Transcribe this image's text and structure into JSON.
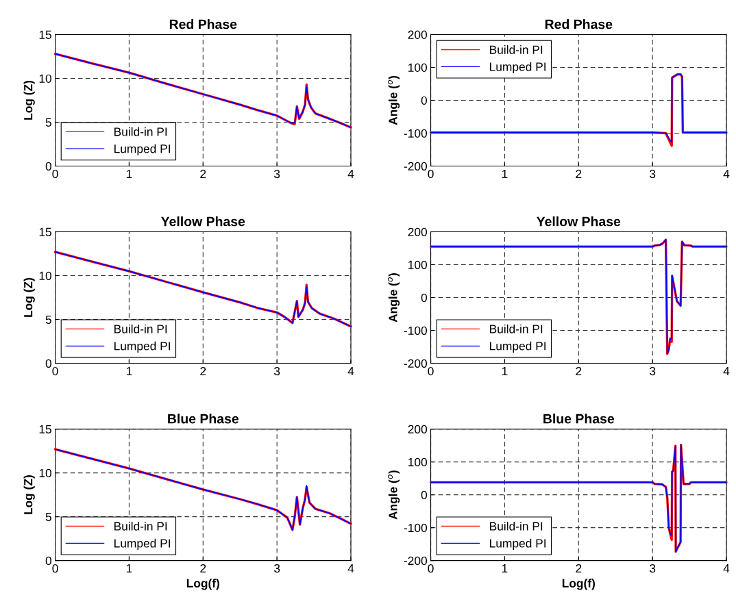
{
  "chart_data": [
    {
      "type": "line",
      "title": "Red Phase",
      "ylabel": "Log (Z)",
      "xlim": [
        0,
        4
      ],
      "xticks": [
        0,
        1,
        2,
        3,
        4
      ],
      "ylim": [
        0,
        15
      ],
      "yticks": [
        0,
        5,
        10,
        15
      ],
      "grid": true,
      "legend": "bottom left",
      "x": [
        0,
        0.5,
        1,
        1.5,
        2,
        2.5,
        2.73,
        3,
        3.1,
        3.19,
        3.24,
        3.27,
        3.3,
        3.35,
        3.38,
        3.4,
        3.42,
        3.46,
        3.52,
        3.71,
        3.86,
        4
      ],
      "series": [
        {
          "name": "Build-in PI",
          "color": "#ff0000",
          "values": [
            12.8,
            11.7,
            10.65,
            9.4,
            8.2,
            7.0,
            6.4,
            5.75,
            5.3,
            4.9,
            4.8,
            6.8,
            5.4,
            6.2,
            7.0,
            9.3,
            7.6,
            6.7,
            6.0,
            5.4,
            4.9,
            4.4
          ]
        },
        {
          "name": "Lumped PI",
          "color": "#0000ff",
          "values": [
            12.8,
            11.7,
            10.65,
            9.4,
            8.2,
            7.0,
            6.4,
            5.75,
            5.3,
            4.9,
            4.9,
            6.8,
            5.4,
            6.2,
            7.0,
            9.1,
            7.6,
            6.7,
            6.0,
            5.4,
            4.9,
            4.4
          ]
        }
      ]
    },
    {
      "type": "line",
      "title": "Red Phase",
      "ylabel": "Angle ($^{o}$)",
      "xlim": [
        0,
        4
      ],
      "xticks": [
        0,
        1,
        2,
        3,
        4
      ],
      "ylim": [
        -200,
        200
      ],
      "yticks": [
        -200,
        -100,
        0,
        100,
        200
      ],
      "grid": true,
      "legend": "top left",
      "x": [
        0,
        2.99,
        3.0,
        3.18,
        3.23,
        3.26,
        3.265,
        3.34,
        3.38,
        3.4,
        3.41,
        4
      ],
      "series": [
        {
          "name": "Build-in PI",
          "color": "#ff0000",
          "values": [
            -98,
            -98,
            -98,
            -100,
            -124,
            -138,
            69,
            79,
            79,
            72,
            -98,
            -98
          ]
        },
        {
          "name": "Lumped PI",
          "color": "#0000ff",
          "values": [
            -98,
            -98,
            -98,
            -100,
            -118,
            -128,
            69,
            79,
            79,
            72,
            -98,
            -98
          ]
        }
      ]
    },
    {
      "type": "line",
      "title": "Yellow Phase",
      "ylabel": "Log (Z)",
      "xlim": [
        0,
        4
      ],
      "xticks": [
        0,
        1,
        2,
        3,
        4
      ],
      "ylim": [
        0,
        15
      ],
      "yticks": [
        0,
        5,
        10,
        15
      ],
      "grid": true,
      "legend": "bottom left",
      "x": [
        0,
        0.5,
        1,
        1.5,
        2,
        2.5,
        2.73,
        3,
        3.1,
        3.21,
        3.27,
        3.29,
        3.35,
        3.38,
        3.4,
        3.42,
        3.47,
        3.58,
        3.77,
        4
      ],
      "series": [
        {
          "name": "Build-in PI",
          "color": "#ff0000",
          "values": [
            12.7,
            11.6,
            10.5,
            9.3,
            8.1,
            6.95,
            6.33,
            5.8,
            5.3,
            4.6,
            7.1,
            5.3,
            6.1,
            6.9,
            8.95,
            7.0,
            6.3,
            5.66,
            5.1,
            4.2
          ]
        },
        {
          "name": "Lumped PI",
          "color": "#0000ff",
          "values": [
            12.7,
            11.6,
            10.5,
            9.3,
            8.1,
            6.95,
            6.33,
            5.8,
            5.3,
            4.6,
            7.1,
            5.3,
            6.1,
            6.9,
            8.7,
            7.0,
            6.3,
            5.66,
            5.1,
            4.2
          ]
        }
      ]
    },
    {
      "type": "line",
      "title": "Yellow Phase",
      "ylabel": "Angle ($^{o}$)",
      "xlim": [
        0,
        4
      ],
      "xticks": [
        0,
        1,
        2,
        3,
        4
      ],
      "ylim": [
        -200,
        200
      ],
      "yticks": [
        -200,
        -100,
        0,
        100,
        200
      ],
      "grid": true,
      "legend": "bottom left",
      "x": [
        0,
        3,
        3.03,
        3.1,
        3.14,
        3.18,
        3.2,
        3.22,
        3.24,
        3.26,
        3.265,
        3.3,
        3.33,
        3.38,
        3.4,
        3.43,
        3.52,
        3.54,
        4
      ],
      "series": [
        {
          "name": "Build-in PI",
          "color": "#ff0000",
          "values": [
            155,
            155,
            158,
            160,
            165,
            176,
            -171,
            -158,
            -125,
            -135,
            66,
            25,
            -11,
            -25,
            170,
            159,
            158,
            155,
            155
          ]
        },
        {
          "name": "Lumped PI",
          "color": "#0000ff",
          "values": [
            155,
            155,
            158,
            160,
            165,
            176,
            -171,
            -158,
            -125,
            -125,
            68,
            25,
            -11,
            -25,
            170,
            159,
            158,
            155,
            155
          ]
        }
      ]
    },
    {
      "type": "line",
      "title": "Blue Phase",
      "ylabel": "Log (Z)",
      "xlabel": "Log(f)",
      "xlim": [
        0,
        4
      ],
      "xticks": [
        0,
        1,
        2,
        3,
        4
      ],
      "ylim": [
        0,
        15
      ],
      "yticks": [
        0,
        5,
        10,
        15
      ],
      "grid": true,
      "legend": "bottom left",
      "x": [
        0,
        0.5,
        1,
        1.5,
        2,
        2.5,
        2.73,
        3,
        3.14,
        3.21,
        3.24,
        3.27,
        3.31,
        3.35,
        3.38,
        3.4,
        3.44,
        3.52,
        3.71,
        3.86,
        4
      ],
      "series": [
        {
          "name": "Build-in PI",
          "color": "#ff0000",
          "values": [
            12.7,
            11.6,
            10.5,
            9.3,
            8.1,
            7.0,
            6.45,
            5.74,
            4.9,
            3.5,
            5.0,
            7.24,
            4.1,
            6.0,
            7.0,
            8.4,
            6.6,
            5.9,
            5.4,
            4.8,
            4.2
          ]
        },
        {
          "name": "Lumped PI",
          "color": "#0000ff",
          "values": [
            12.7,
            11.6,
            10.5,
            9.3,
            8.1,
            7.0,
            6.45,
            5.74,
            4.9,
            3.5,
            5.0,
            7.24,
            4.1,
            6.0,
            7.0,
            8.55,
            6.6,
            5.9,
            5.4,
            4.8,
            4.2
          ]
        }
      ]
    },
    {
      "type": "line",
      "title": "Blue Phase",
      "ylabel": "Angle ($^{o}$)",
      "xlabel": "Log(f)",
      "xlim": [
        0,
        4
      ],
      "xticks": [
        0,
        1,
        2,
        3,
        4
      ],
      "ylim": [
        -200,
        200
      ],
      "yticks": [
        -200,
        -100,
        0,
        100,
        200
      ],
      "grid": true,
      "legend": "bottom left",
      "x": [
        0,
        3,
        3.03,
        3.13,
        3.18,
        3.2,
        3.22,
        3.24,
        3.26,
        3.265,
        3.28,
        3.31,
        3.315,
        3.34,
        3.38,
        3.385,
        3.42,
        3.5,
        3.52,
        4
      ],
      "series": [
        {
          "name": "Build-in PI",
          "color": "#ff0000",
          "values": [
            38,
            38,
            33,
            32,
            24,
            -9,
            -100,
            -119,
            -137,
            70,
            73,
            149,
            -173,
            -161,
            -144,
            152,
            33,
            33,
            38,
            38
          ]
        },
        {
          "name": "Lumped PI",
          "color": "#0000ff",
          "values": [
            38,
            38,
            33,
            32,
            24,
            -9,
            -100,
            -119,
            -123,
            70,
            73,
            149,
            -173,
            -161,
            -144,
            152,
            33,
            33,
            38,
            38
          ]
        }
      ]
    }
  ]
}
